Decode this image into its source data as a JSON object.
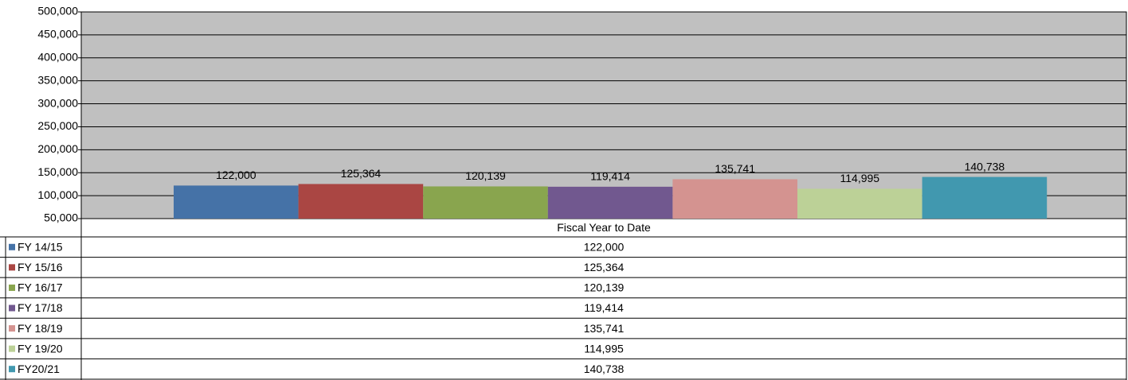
{
  "chart_data": {
    "type": "bar",
    "categories": [
      "Fiscal Year to Date"
    ],
    "series": [
      {
        "name": "FY 14/15",
        "color": "#4572a7",
        "values": [
          122000
        ],
        "value_labels": [
          "122,000"
        ]
      },
      {
        "name": "FY 15/16",
        "color": "#aa4643",
        "values": [
          125364
        ],
        "value_labels": [
          "125,364"
        ]
      },
      {
        "name": "FY 16/17",
        "color": "#89a54e",
        "values": [
          120139
        ],
        "value_labels": [
          "120,139"
        ]
      },
      {
        "name": "FY 17/18",
        "color": "#71588f",
        "values": [
          119414
        ],
        "value_labels": [
          "119,414"
        ]
      },
      {
        "name": "FY 18/19",
        "color": "#d49390",
        "values": [
          135741
        ],
        "value_labels": [
          "135,741"
        ]
      },
      {
        "name": "FY 19/20",
        "color": "#bcd197",
        "values": [
          114995
        ],
        "value_labels": [
          "114,995"
        ]
      },
      {
        "name": "FY20/21",
        "color": "#4198af",
        "values": [
          140738
        ],
        "value_labels": [
          "140,738"
        ]
      }
    ],
    "ylim": [
      50000,
      500000
    ],
    "yticks": [
      {
        "value": 50000,
        "label": "50,000"
      },
      {
        "value": 100000,
        "label": "100,000"
      },
      {
        "value": 150000,
        "label": "150,000"
      },
      {
        "value": 200000,
        "label": "200,000"
      },
      {
        "value": 250000,
        "label": "250,000"
      },
      {
        "value": 300000,
        "label": "300,000"
      },
      {
        "value": 350000,
        "label": "350,000"
      },
      {
        "value": 400000,
        "label": "400,000"
      },
      {
        "value": 450000,
        "label": "450,000"
      },
      {
        "value": 500000,
        "label": "500,000"
      }
    ],
    "grid": true,
    "plot_background": "#c0c0c0"
  }
}
